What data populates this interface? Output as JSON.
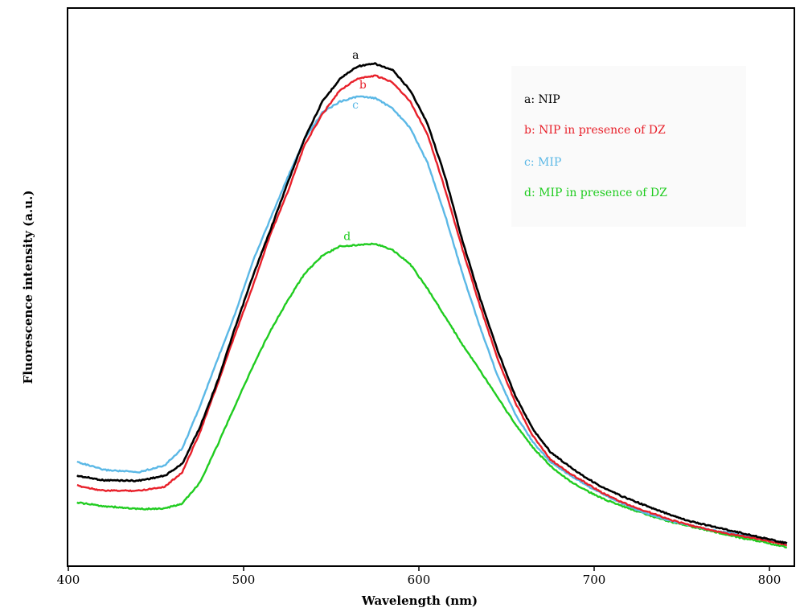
{
  "chart_data": {
    "type": "line",
    "xlabel": "Wavelength (nm)",
    "ylabel": "Fluorescence intensity (a.u.)",
    "xlim": [
      400,
      812
    ],
    "ylim": [
      0,
      100
    ],
    "x_ticks": [
      "400",
      "500",
      "600",
      "700",
      "800"
    ],
    "y_ticks": [],
    "grid": false,
    "legend_position": "top-right",
    "legend_entries": [
      {
        "key": "a",
        "text": "a: NIP",
        "color": "#000000"
      },
      {
        "key": "b",
        "text": "b: NIP in presence of DZ",
        "color": "#e8202a"
      },
      {
        "key": "c",
        "text": "c: MIP",
        "color": "#5bb8e6"
      },
      {
        "key": "d",
        "text": "d: MIP in presence of DZ",
        "color": "#20cc20"
      }
    ],
    "series": [
      {
        "label": "a",
        "color": "#000000",
        "x": [
          405,
          420,
          440,
          455,
          465,
          475,
          485,
          495,
          505,
          515,
          525,
          535,
          545,
          555,
          565,
          575,
          585,
          595,
          605,
          615,
          625,
          635,
          645,
          655,
          665,
          675,
          685,
          695,
          705,
          715,
          725,
          735,
          745,
          755,
          765,
          775,
          785,
          795,
          805,
          810
        ],
        "y": [
          15.6,
          14.7,
          14.6,
          15.6,
          18.0,
          25.3,
          34.5,
          45.2,
          55.5,
          64.8,
          74.4,
          83.7,
          90.9,
          95.5,
          98.0,
          98.5,
          97.2,
          93.2,
          86.4,
          75.8,
          62.7,
          51.2,
          40.7,
          31.7,
          25.0,
          20.4,
          17.7,
          15.3,
          13.2,
          11.6,
          10.2,
          8.8,
          7.6,
          6.4,
          5.6,
          4.8,
          4.0,
          3.2,
          2.4,
          2.0
        ]
      },
      {
        "label": "b",
        "color": "#e8202a",
        "x": [
          405,
          420,
          440,
          455,
          465,
          475,
          485,
          495,
          505,
          515,
          525,
          535,
          545,
          555,
          565,
          575,
          585,
          595,
          605,
          615,
          625,
          635,
          645,
          655,
          665,
          675,
          685,
          695,
          705,
          715,
          725,
          735,
          745,
          755,
          765,
          775,
          785,
          795,
          805,
          810
        ],
        "y": [
          13.6,
          12.6,
          12.6,
          13.4,
          16.3,
          24.3,
          33.9,
          43.9,
          53.5,
          63.9,
          72.6,
          82.3,
          88.4,
          93.2,
          95.5,
          96.1,
          94.8,
          90.9,
          84.3,
          73.2,
          61.0,
          49.6,
          39.1,
          30.3,
          23.6,
          18.9,
          16.3,
          14.2,
          12.1,
          10.4,
          9.0,
          7.8,
          6.6,
          5.6,
          4.8,
          4.0,
          3.4,
          2.8,
          2.0,
          1.6
        ]
      },
      {
        "label": "c",
        "color": "#5bb8e6",
        "x": [
          405,
          420,
          440,
          455,
          465,
          475,
          485,
          495,
          505,
          515,
          525,
          535,
          545,
          555,
          565,
          575,
          585,
          595,
          605,
          615,
          625,
          635,
          645,
          655,
          665,
          675,
          685,
          695,
          705,
          715,
          725,
          735,
          745,
          755,
          765,
          775,
          785,
          795,
          805,
          810
        ],
        "y": [
          18.4,
          16.8,
          16.3,
          17.7,
          21.1,
          29.5,
          38.9,
          48.1,
          58.5,
          67.1,
          75.5,
          83.5,
          88.7,
          90.9,
          91.9,
          91.6,
          89.5,
          85.6,
          78.5,
          68.0,
          56.1,
          45.4,
          35.6,
          28.0,
          22.4,
          18.4,
          16.0,
          13.8,
          11.9,
          10.2,
          8.6,
          7.4,
          6.4,
          5.6,
          4.8,
          4.2,
          3.6,
          3.0,
          2.2,
          1.8
        ]
      },
      {
        "label": "d",
        "color": "#20cc20",
        "x": [
          405,
          420,
          440,
          455,
          465,
          475,
          485,
          495,
          505,
          515,
          525,
          535,
          545,
          555,
          565,
          575,
          585,
          595,
          605,
          615,
          625,
          635,
          645,
          655,
          665,
          675,
          685,
          695,
          705,
          715,
          725,
          735,
          745,
          755,
          765,
          775,
          785,
          795,
          805,
          810
        ],
        "y": [
          10.2,
          9.5,
          8.9,
          9.0,
          10.0,
          14.2,
          21.7,
          29.6,
          37.4,
          44.6,
          50.8,
          56.4,
          59.9,
          61.8,
          62.0,
          62.3,
          61.0,
          58.2,
          53.2,
          47.6,
          41.9,
          36.7,
          31.3,
          26.0,
          21.3,
          17.6,
          14.8,
          12.7,
          11.0,
          9.6,
          8.4,
          7.2,
          6.2,
          5.4,
          4.6,
          3.8,
          3.0,
          2.4,
          1.6,
          1.2
        ]
      }
    ],
    "curve_labels": [
      {
        "text": "a",
        "x": 562,
        "y": 99.5,
        "color": "#000000"
      },
      {
        "text": "b",
        "x": 566,
        "y": 93.5,
        "color": "#e8202a"
      },
      {
        "text": "c",
        "x": 562,
        "y": 89.5,
        "color": "#5bb8e6"
      },
      {
        "text": "d",
        "x": 557,
        "y": 63.0,
        "color": "#20cc20"
      }
    ]
  }
}
